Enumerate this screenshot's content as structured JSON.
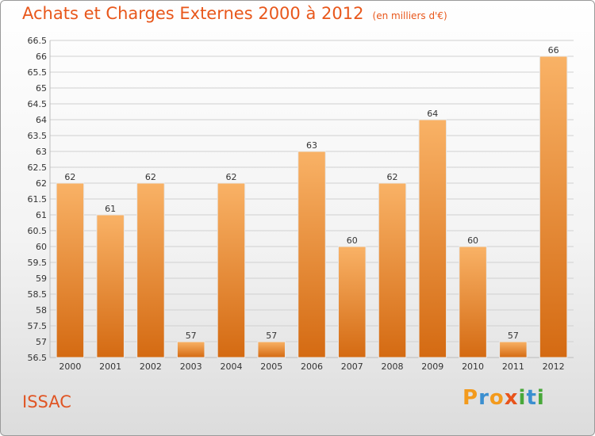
{
  "title": "Achats et Charges Externes 2000 à 2012",
  "unit_note": "(en milliers d'€)",
  "commune": "ISSAC",
  "logo": {
    "letters": [
      "P",
      "r",
      "o",
      "x",
      "i",
      "t",
      "i"
    ],
    "colors": [
      "#f39a1c",
      "#3b8fd0",
      "#f39a1c",
      "#e8531b",
      "#48a83a",
      "#3b8fd0",
      "#48a83a"
    ]
  },
  "colors": {
    "bar": "#f08c2c",
    "bar_light": "#f9b266",
    "bar_dark": "#d46a12",
    "title": "#e8571b"
  },
  "chart_data": {
    "type": "bar",
    "categories": [
      "2000",
      "2001",
      "2002",
      "2003",
      "2004",
      "2005",
      "2006",
      "2007",
      "2008",
      "2009",
      "2010",
      "2011",
      "2012"
    ],
    "values": [
      62,
      61,
      62,
      57,
      62,
      57,
      63,
      60,
      62,
      64,
      60,
      57,
      66
    ],
    "title": "Achats et Charges Externes 2000 à 2012",
    "ylim": [
      56.5,
      66.5
    ],
    "yticks": [
      "56.5",
      "57",
      "57.5",
      "58",
      "58.5",
      "59",
      "59.5",
      "60",
      "60.5",
      "61",
      "61.5",
      "62",
      "62.5",
      "63",
      "63.5",
      "64",
      "64.5",
      "65",
      "65.5",
      "66",
      "66.5"
    ],
    "grid": true
  }
}
